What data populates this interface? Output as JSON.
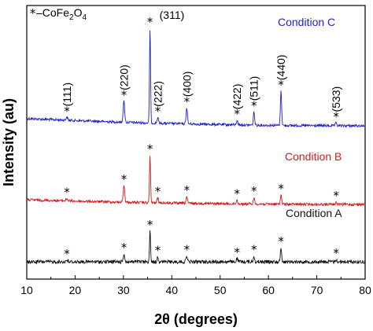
{
  "chart_data": {
    "type": "line",
    "xlabel": "2θ (degrees)",
    "ylabel": "Intensity (au)",
    "xlim": [
      10,
      80
    ],
    "xticks": [
      10,
      20,
      30,
      40,
      50,
      60,
      70,
      80
    ],
    "y_ticks_shown": false,
    "legend": {
      "marker": "*",
      "text_prefix": " –CoFe",
      "sub1": "2",
      "mid": "O",
      "sub2": "4",
      "placement": "top-left"
    },
    "peaks": [
      18.3,
      30.1,
      35.5,
      37.1,
      43.1,
      53.5,
      57.0,
      62.6,
      74.0
    ],
    "hkl_labels": [
      {
        "text": "(111)",
        "x": 18.3
      },
      {
        "text": "(220)",
        "x": 30.1
      },
      {
        "text": "(311)",
        "x": 35.5
      },
      {
        "text": "(222)",
        "x": 37.1
      },
      {
        "text": "(400)",
        "x": 43.1
      },
      {
        "text": "(422)",
        "x": 53.5
      },
      {
        "text": "(511)",
        "x": 57.0
      },
      {
        "text": "(440)",
        "x": 62.6
      },
      {
        "text": "(533)",
        "x": 74.0
      }
    ],
    "series": [
      {
        "name": "Condition C",
        "color": "#1f1fcc",
        "baseline_start": 0.66,
        "baseline_end": 0.0,
        "curvature": 0.55,
        "peak_heights": [
          0.25,
          1.9,
          8.6,
          0.5,
          1.45,
          0.4,
          1.2,
          3.1,
          0.25
        ]
      },
      {
        "name": "Condition B",
        "color": "#d81818",
        "baseline_start": 0.42,
        "baseline_end": 0.0,
        "curvature": 0.6,
        "peak_heights": [
          0.2,
          1.5,
          4.3,
          0.45,
          0.6,
          0.35,
          0.6,
          0.85,
          0.2
        ]
      },
      {
        "name": "Condition A",
        "color": "#111111",
        "baseline_start": 0.0,
        "baseline_end": 0.0,
        "curvature": 0.0,
        "peak_heights": [
          0.15,
          0.7,
          2.8,
          0.45,
          0.55,
          0.3,
          0.55,
          1.3,
          0.2
        ]
      }
    ]
  }
}
